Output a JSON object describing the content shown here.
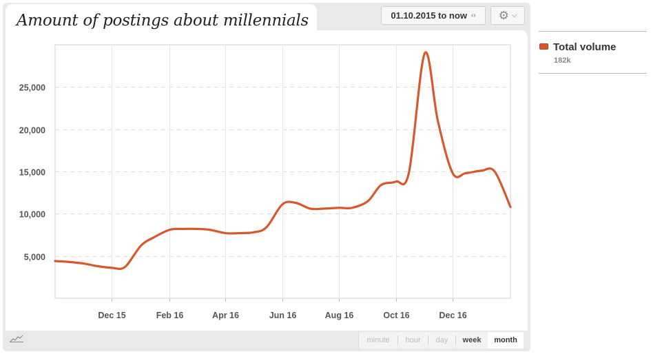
{
  "title": "Amount of postings about millennials",
  "controls": {
    "date_range": "01.10.2015 to now",
    "date_arrows": "‹›",
    "settings_icon": "gear-icon",
    "dropdown_icon": "chevron-down-icon"
  },
  "granularity": {
    "options": [
      "minute",
      "hour",
      "day",
      "week",
      "month"
    ],
    "selected": "month"
  },
  "legend": {
    "name": "Total volume",
    "value": "182k"
  },
  "colors": {
    "series": "#d9582b",
    "grid": "#dddddd"
  },
  "chart_data": {
    "type": "line",
    "title": "Amount of postings about millennials",
    "xlabel": "",
    "ylabel": "",
    "ylim": [
      0,
      30000
    ],
    "yticks": [
      5000,
      10000,
      15000,
      20000,
      25000
    ],
    "ytick_labels": [
      "5,000",
      "10,000",
      "15,000",
      "20,000",
      "25,000"
    ],
    "xticks": [
      "Dec 15",
      "Feb 16",
      "Apr 16",
      "Jun 16",
      "Aug 16",
      "Oct 16",
      "Dec 16"
    ],
    "grid": true,
    "legend_position": "right",
    "series": [
      {
        "name": "Total volume",
        "x": [
          "2015-10-01",
          "2015-10-15",
          "2015-11-01",
          "2015-11-15",
          "2015-12-01",
          "2015-12-15",
          "2016-01-01",
          "2016-01-15",
          "2016-02-01",
          "2016-02-15",
          "2016-03-01",
          "2016-03-15",
          "2016-04-01",
          "2016-04-15",
          "2016-05-01",
          "2016-05-15",
          "2016-06-01",
          "2016-06-15",
          "2016-07-01",
          "2016-07-15",
          "2016-08-01",
          "2016-08-15",
          "2016-09-01",
          "2016-09-15",
          "2016-10-01",
          "2016-10-15",
          "2016-11-01",
          "2016-11-15",
          "2016-12-01",
          "2016-12-15",
          "2017-01-01",
          "2017-01-15",
          "2017-02-01"
        ],
        "values": [
          4400,
          4300,
          4100,
          3800,
          3600,
          3700,
          6200,
          7200,
          8100,
          8200,
          8200,
          8100,
          7700,
          7700,
          7800,
          8400,
          11100,
          11300,
          10600,
          10600,
          10700,
          10700,
          11500,
          13400,
          13800,
          14900,
          29000,
          21000,
          14800,
          14800,
          15100,
          15000,
          10800
        ]
      }
    ]
  }
}
